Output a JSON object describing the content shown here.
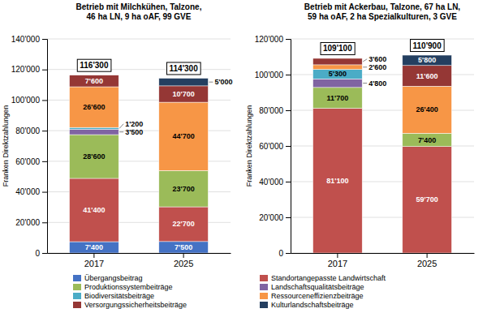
{
  "chart_data": [
    {
      "type": "bar",
      "stacked": true,
      "data_labels": true,
      "grid": true,
      "legend": "bottom",
      "title": "Betrieb mit Milchkühen, Talzone,\n46 ha LN, 9 ha oAF, 99 GVE",
      "ylabel": "Franken Direktzahlungen",
      "categories": [
        "2017",
        "2025"
      ],
      "ylim": [
        0,
        140000
      ],
      "yticks": [
        0,
        {
          "value": 20000,
          "label": "20'000"
        },
        {
          "value": 40000,
          "label": "40'000"
        },
        {
          "value": 60000,
          "label": "60'000"
        },
        {
          "value": 80000,
          "label": "80'000"
        },
        {
          "value": 100000,
          "label": "100'000"
        },
        {
          "value": 120000,
          "label": "120'000"
        },
        {
          "value": 140000,
          "label": "140'000"
        }
      ],
      "totals": [
        116300,
        114300
      ],
      "total_labels": [
        "116'300",
        "114'300"
      ],
      "series": [
        {
          "name": "Übergangsbeitrag",
          "color": "#4472C4",
          "values": [
            7400,
            7500
          ],
          "value_labels": [
            "7'400",
            "7'500"
          ]
        },
        {
          "name": "Standortangepasste Landwirtschaft",
          "color": "#C0504D",
          "values": [
            41400,
            22700
          ],
          "value_labels": [
            "41'400",
            "22'700"
          ]
        },
        {
          "name": "Produktionssystembeiträge",
          "color": "#9BBB59",
          "values": [
            28600,
            23700
          ],
          "value_labels": [
            "28'600",
            "23'700"
          ]
        },
        {
          "name": "Landschaftsqualitätsbeiträge",
          "color": "#8064A2",
          "values": [
            3500,
            0
          ],
          "value_labels": [
            "3'500",
            null
          ]
        },
        {
          "name": "Biodiversitätsbeiträge",
          "color": "#4BACC6",
          "values": [
            1200,
            0
          ],
          "value_labels": [
            "1'200",
            null
          ]
        },
        {
          "name": "Ressourceneffizienzbeiträge",
          "color": "#F79646",
          "values": [
            26600,
            44700
          ],
          "value_labels": [
            "26'600",
            "44'700"
          ]
        },
        {
          "name": "Versorgungssicherheitsbeiträge",
          "color": "#953735",
          "values": [
            7600,
            10700
          ],
          "value_labels": [
            "7'600",
            "10'700"
          ]
        },
        {
          "name": "Kulturlandschaftsbeiträge",
          "color": "#243F60",
          "values": [
            0,
            5000
          ],
          "value_labels": [
            null,
            "5'000"
          ]
        }
      ]
    },
    {
      "type": "bar",
      "stacked": true,
      "data_labels": true,
      "grid": true,
      "title": "Betrieb mit Ackerbau, Talzone, 67 ha LN,\n59 ha oAF, 2 ha Spezialkulturen, 3 GVE",
      "ylabel": "Franken Direktzahlungen",
      "categories": [
        "2017",
        "2025"
      ],
      "ylim": [
        0,
        120000
      ],
      "yticks": [
        0,
        {
          "value": 20000,
          "label": "20'000"
        },
        {
          "value": 40000,
          "label": "40'000"
        },
        {
          "value": 60000,
          "label": "60'000"
        },
        {
          "value": 80000,
          "label": "80'000"
        },
        {
          "value": 100000,
          "label": "100'000"
        },
        {
          "value": 120000,
          "label": "120'000"
        }
      ],
      "totals": [
        109100,
        110900
      ],
      "total_labels": [
        "109'100",
        "110'900"
      ],
      "series": [
        {
          "color": "#4472C4",
          "values": [
            0,
            0
          ],
          "value_labels": [
            null,
            null
          ]
        },
        {
          "color": "#C0504D",
          "values": [
            81100,
            59700
          ],
          "value_labels": [
            "81'100",
            "59'700"
          ]
        },
        {
          "color": "#9BBB59",
          "values": [
            11700,
            7400
          ],
          "value_labels": [
            "11'700",
            "7'400"
          ]
        },
        {
          "color": "#8064A2",
          "values": [
            4800,
            0
          ],
          "value_labels": [
            "4'800",
            null
          ]
        },
        {
          "color": "#4BACC6",
          "values": [
            5300,
            0
          ],
          "value_labels": [
            "5'300",
            null
          ]
        },
        {
          "color": "#F79646",
          "values": [
            2600,
            26400
          ],
          "value_labels": [
            "2'600",
            "26'400"
          ]
        },
        {
          "color": "#953735",
          "values": [
            3600,
            11600
          ],
          "value_labels": [
            "3'600",
            "11'600"
          ]
        },
        {
          "color": "#243F60",
          "values": [
            0,
            5800
          ],
          "value_labels": [
            null,
            "5'800"
          ]
        }
      ]
    }
  ]
}
